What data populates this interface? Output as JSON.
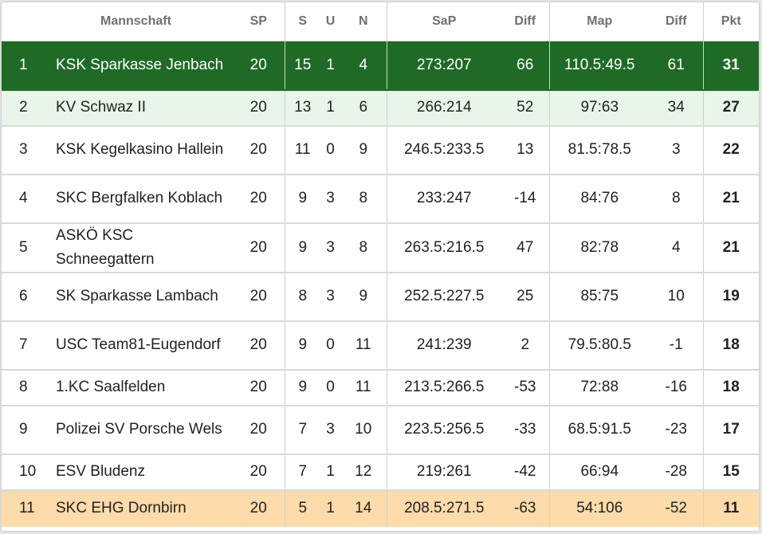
{
  "table": {
    "headers": {
      "team": "Mannschaft",
      "sp": "SP",
      "s": "S",
      "u": "U",
      "n": "N",
      "sap": "SaP",
      "diff1": "Diff",
      "map": "Map",
      "diff2": "Diff",
      "pkt": "Pkt"
    },
    "rows": [
      {
        "pos": "1",
        "team": "KSK Sparkasse Jenbach",
        "sp": "20",
        "s": "15",
        "u": "1",
        "n": "4",
        "sap": "273:207",
        "diff1": "66",
        "map": "110.5:49.5",
        "diff2": "61",
        "pkt": "31"
      },
      {
        "pos": "2",
        "team": "KV Schwaz II",
        "sp": "20",
        "s": "13",
        "u": "1",
        "n": "6",
        "sap": "266:214",
        "diff1": "52",
        "map": "97:63",
        "diff2": "34",
        "pkt": "27"
      },
      {
        "pos": "3",
        "team": "KSK Kegelkasino Hallein",
        "sp": "20",
        "s": "11",
        "u": "0",
        "n": "9",
        "sap": "246.5:233.5",
        "diff1": "13",
        "map": "81.5:78.5",
        "diff2": "3",
        "pkt": "22"
      },
      {
        "pos": "4",
        "team": "SKC Bergfalken Koblach",
        "sp": "20",
        "s": "9",
        "u": "3",
        "n": "8",
        "sap": "233:247",
        "diff1": "-14",
        "map": "84:76",
        "diff2": "8",
        "pkt": "21"
      },
      {
        "pos": "5",
        "team": "ASKÖ KSC Schneegattern",
        "sp": "20",
        "s": "9",
        "u": "3",
        "n": "8",
        "sap": "263.5:216.5",
        "diff1": "47",
        "map": "82:78",
        "diff2": "4",
        "pkt": "21"
      },
      {
        "pos": "6",
        "team": "SK Sparkasse Lambach",
        "sp": "20",
        "s": "8",
        "u": "3",
        "n": "9",
        "sap": "252.5:227.5",
        "diff1": "25",
        "map": "85:75",
        "diff2": "10",
        "pkt": "19"
      },
      {
        "pos": "7",
        "team": "USC Team81-Eugendorf",
        "sp": "20",
        "s": "9",
        "u": "0",
        "n": "11",
        "sap": "241:239",
        "diff1": "2",
        "map": "79.5:80.5",
        "diff2": "-1",
        "pkt": "18"
      },
      {
        "pos": "8",
        "team": "1.KC Saalfelden",
        "sp": "20",
        "s": "9",
        "u": "0",
        "n": "11",
        "sap": "213.5:266.5",
        "diff1": "-53",
        "map": "72:88",
        "diff2": "-16",
        "pkt": "18"
      },
      {
        "pos": "9",
        "team": "Polizei SV Porsche Wels",
        "sp": "20",
        "s": "7",
        "u": "3",
        "n": "10",
        "sap": "223.5:256.5",
        "diff1": "-33",
        "map": "68.5:91.5",
        "diff2": "-23",
        "pkt": "17"
      },
      {
        "pos": "10",
        "team": "ESV Bludenz",
        "sp": "20",
        "s": "7",
        "u": "1",
        "n": "12",
        "sap": "219:261",
        "diff1": "-42",
        "map": "66:94",
        "diff2": "-28",
        "pkt": "15"
      },
      {
        "pos": "11",
        "team": "SKC EHG Dornbirn",
        "sp": "20",
        "s": "5",
        "u": "1",
        "n": "14",
        "sap": "208.5:271.5",
        "diff1": "-63",
        "map": "54:106",
        "diff2": "-52",
        "pkt": "11"
      }
    ]
  },
  "colors": {
    "leader_row": "#1f6b26",
    "second_row": "#e8f6e9",
    "last_row": "#fddbaa",
    "header_text": "#707070"
  }
}
